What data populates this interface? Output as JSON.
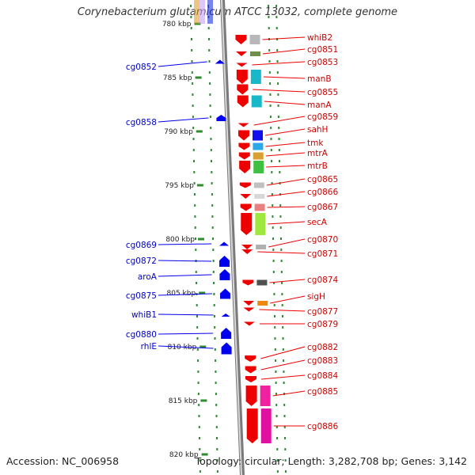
{
  "title": "Corynebacterium glutamicum ATCC 13032, complete genome",
  "footer": {
    "accession": "Accession: NC_006958",
    "topology": "Topology: circular; Length: 3,282,708 bp; Genes: 3,142"
  },
  "scale_ticks": [
    {
      "label": "780 kbp",
      "kbp": 780
    },
    {
      "label": "785 kbp",
      "kbp": 785
    },
    {
      "label": "790 kbp",
      "kbp": 790
    },
    {
      "label": "795 kbp",
      "kbp": 795
    },
    {
      "label": "800 kbp",
      "kbp": 800
    },
    {
      "label": "805 kbp",
      "kbp": 805
    },
    {
      "label": "810 kbp",
      "kbp": 810
    },
    {
      "label": "815 kbp",
      "kbp": 815
    },
    {
      "label": "820 kbp",
      "kbp": 820
    }
  ],
  "genes_forward": [
    {
      "name": "cg0852",
      "strand": "+"
    },
    {
      "name": "cg0858",
      "strand": "+"
    },
    {
      "name": "cg0869",
      "strand": "+"
    },
    {
      "name": "cg0872",
      "strand": "+"
    },
    {
      "name": "aroA",
      "strand": "+"
    },
    {
      "name": "cg0875",
      "strand": "+"
    },
    {
      "name": "whiB1",
      "strand": "+"
    },
    {
      "name": "cg0880",
      "strand": "+"
    },
    {
      "name": "rhlE",
      "strand": "+"
    }
  ],
  "genes_reverse": [
    {
      "name": "whiB2",
      "strand": "-"
    },
    {
      "name": "cg0851",
      "strand": "-"
    },
    {
      "name": "cg0853",
      "strand": "-"
    },
    {
      "name": "manB",
      "strand": "-"
    },
    {
      "name": "cg0855",
      "strand": "-"
    },
    {
      "name": "manA",
      "strand": "-"
    },
    {
      "name": "cg0859",
      "strand": "-"
    },
    {
      "name": "sahH",
      "strand": "-"
    },
    {
      "name": "tmk",
      "strand": "-"
    },
    {
      "name": "mtrA",
      "strand": "-"
    },
    {
      "name": "mtrB",
      "strand": "-"
    },
    {
      "name": "cg0865",
      "strand": "-"
    },
    {
      "name": "cg0866",
      "strand": "-"
    },
    {
      "name": "cg0867",
      "strand": "-"
    },
    {
      "name": "secA",
      "strand": "-"
    },
    {
      "name": "cg0870",
      "strand": "-"
    },
    {
      "name": "cg0871",
      "strand": "-"
    },
    {
      "name": "cg0874",
      "strand": "-"
    },
    {
      "name": "sigH",
      "strand": "-"
    },
    {
      "name": "cg0877",
      "strand": "-"
    },
    {
      "name": "cg0879",
      "strand": "-"
    },
    {
      "name": "cg0882",
      "strand": "-"
    },
    {
      "name": "cg0883",
      "strand": "-"
    },
    {
      "name": "cg0884",
      "strand": "-"
    },
    {
      "name": "cg0885",
      "strand": "-"
    },
    {
      "name": "cg0886",
      "strand": "-"
    }
  ],
  "colors": {
    "forward_gene": "#0000ee",
    "reverse_gene": "#ee0000",
    "forward_label": "#0000cc",
    "reverse_label": "#cc0000",
    "backbone": "#8a8a8a",
    "dotted_guide": "#2e8b2e"
  }
}
